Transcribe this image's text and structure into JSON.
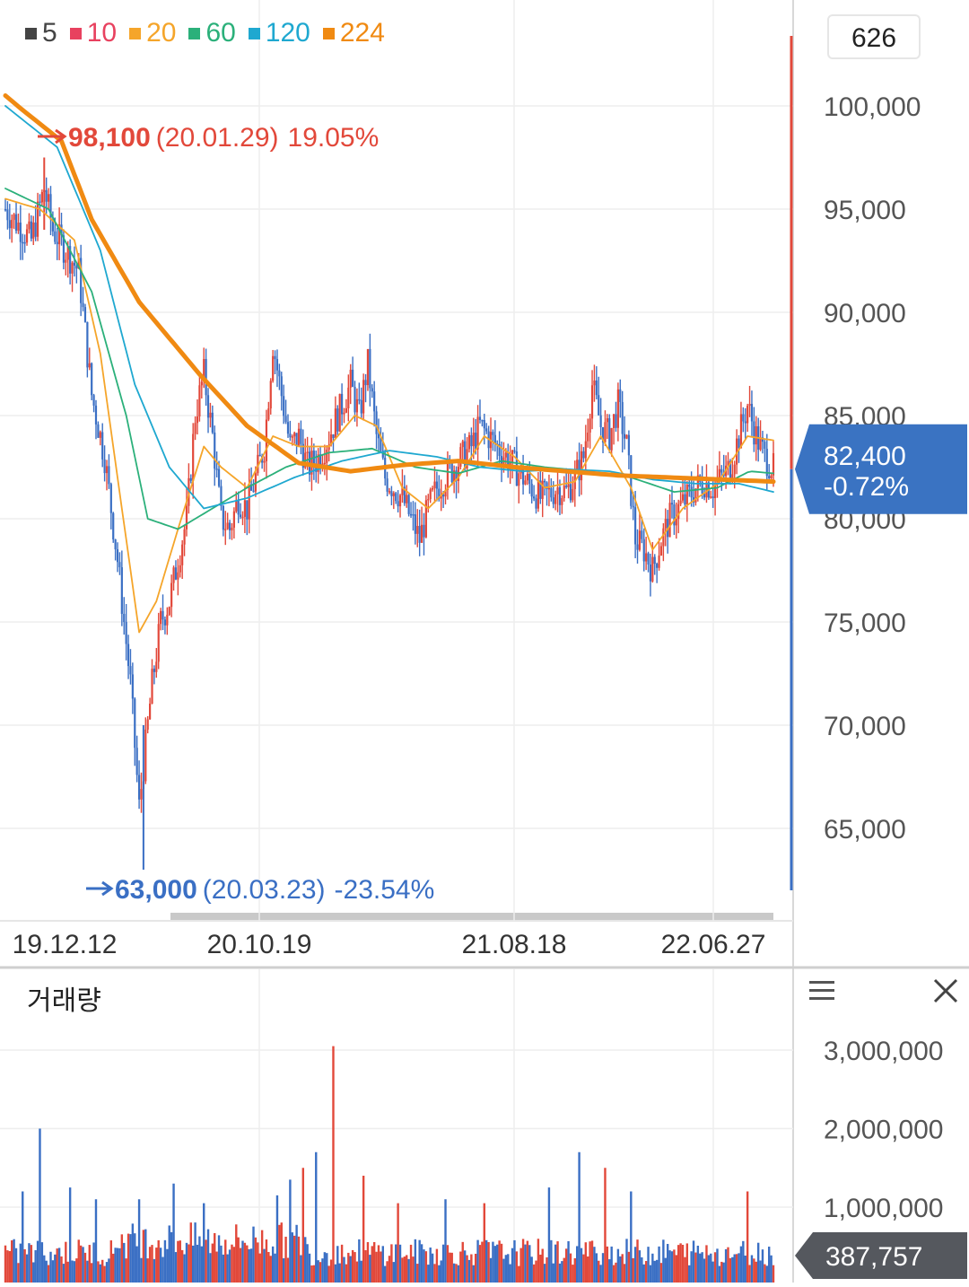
{
  "legend": [
    {
      "label": "5",
      "color": "#444444"
    },
    {
      "label": "10",
      "color": "#e8415f"
    },
    {
      "label": "20",
      "color": "#f5a52a"
    },
    {
      "label": "60",
      "color": "#2bb07a"
    },
    {
      "label": "120",
      "color": "#1fa8d0"
    },
    {
      "label": "224",
      "color": "#f08a12"
    }
  ],
  "count_box": "626",
  "colors": {
    "up": "#e2483a",
    "down": "#3a6fc4",
    "price_badge": "#3a73c2",
    "volume_badge": "#55585e",
    "grid": "#eeeeee"
  },
  "annotations": {
    "high_value": "98,100",
    "high_date": "(20.01.29)",
    "high_pct": "19.05%",
    "low_value": "63,000",
    "low_date": "(20.03.23)",
    "low_pct": "-23.54%"
  },
  "current": {
    "price": "82,400",
    "change": "-0.72%"
  },
  "volume": {
    "title": "거래량",
    "current": "387,757"
  },
  "chart_data": [
    {
      "type": "candlestick",
      "x_ticks": [
        "19.12.12",
        "20.10.19",
        "21.08.18",
        "22.06.27"
      ],
      "y_ticks": [
        "100,000",
        "95,000",
        "90,000",
        "85,000",
        "80,000",
        "75,000",
        "70,000",
        "65,000"
      ],
      "ylim": [
        60000,
        104000
      ],
      "grid": true,
      "price_path": [
        [
          0,
          95000
        ],
        [
          12,
          93500
        ],
        [
          18,
          96000
        ],
        [
          22,
          94000
        ],
        [
          28,
          93000
        ],
        [
          34,
          92000
        ],
        [
          40,
          86000
        ],
        [
          46,
          83000
        ],
        [
          52,
          78000
        ],
        [
          58,
          72000
        ],
        [
          62,
          66000
        ],
        [
          64,
          68000
        ],
        [
          68,
          72000
        ],
        [
          72,
          75000
        ],
        [
          76,
          76000
        ],
        [
          80,
          78000
        ],
        [
          84,
          80000
        ],
        [
          88,
          85000
        ],
        [
          92,
          87000
        ],
        [
          96,
          84000
        ],
        [
          100,
          80000
        ],
        [
          104,
          79500
        ],
        [
          108,
          81000
        ],
        [
          112,
          80500
        ],
        [
          116,
          82000
        ],
        [
          120,
          83500
        ],
        [
          124,
          88500
        ],
        [
          128,
          86000
        ],
        [
          132,
          83500
        ],
        [
          136,
          84000
        ],
        [
          140,
          82500
        ],
        [
          144,
          82800
        ],
        [
          148,
          83500
        ],
        [
          152,
          84500
        ],
        [
          156,
          85500
        ],
        [
          160,
          86500
        ],
        [
          164,
          85000
        ],
        [
          168,
          87500
        ],
        [
          172,
          84000
        ],
        [
          176,
          82000
        ],
        [
          180,
          81500
        ],
        [
          184,
          81000
        ],
        [
          188,
          80000
        ],
        [
          192,
          79000
        ],
        [
          196,
          80500
        ],
        [
          200,
          81500
        ],
        [
          204,
          82000
        ],
        [
          208,
          82500
        ],
        [
          212,
          83000
        ],
        [
          216,
          83500
        ],
        [
          220,
          84500
        ],
        [
          224,
          84000
        ],
        [
          228,
          83500
        ],
        [
          232,
          83000
        ],
        [
          236,
          82500
        ],
        [
          240,
          82000
        ],
        [
          244,
          81500
        ],
        [
          248,
          81000
        ],
        [
          252,
          81200
        ],
        [
          256,
          81500
        ],
        [
          260,
          81300
        ],
        [
          264,
          82000
        ],
        [
          268,
          83000
        ],
        [
          272,
          86500
        ],
        [
          276,
          84500
        ],
        [
          280,
          84000
        ],
        [
          284,
          85500
        ],
        [
          288,
          83500
        ],
        [
          292,
          79000
        ],
        [
          296,
          78500
        ],
        [
          300,
          77500
        ],
        [
          304,
          79000
        ],
        [
          308,
          80000
        ],
        [
          312,
          80500
        ],
        [
          316,
          81000
        ],
        [
          320,
          81500
        ],
        [
          324,
          81800
        ],
        [
          328,
          81500
        ],
        [
          332,
          82000
        ],
        [
          336,
          82500
        ],
        [
          340,
          84000
        ],
        [
          344,
          85500
        ],
        [
          348,
          84000
        ],
        [
          352,
          83000
        ],
        [
          356,
          82400
        ]
      ],
      "moving_averages": [
        {
          "name": "20",
          "color": "#f5a52a",
          "path": [
            [
              0,
              95500
            ],
            [
              16,
              95000
            ],
            [
              32,
              93500
            ],
            [
              44,
              88000
            ],
            [
              56,
              79000
            ],
            [
              62,
              74500
            ],
            [
              70,
              76000
            ],
            [
              80,
              79500
            ],
            [
              92,
              83500
            ],
            [
              100,
              82500
            ],
            [
              112,
              81500
            ],
            [
              124,
              84000
            ],
            [
              136,
              83500
            ],
            [
              150,
              83500
            ],
            [
              162,
              85000
            ],
            [
              172,
              84500
            ],
            [
              184,
              81500
            ],
            [
              196,
              80500
            ],
            [
              210,
              82000
            ],
            [
              222,
              84000
            ],
            [
              236,
              83000
            ],
            [
              250,
              81500
            ],
            [
              264,
              81800
            ],
            [
              276,
              84000
            ],
            [
              290,
              81500
            ],
            [
              300,
              78500
            ],
            [
              314,
              80500
            ],
            [
              330,
              81700
            ],
            [
              344,
              84000
            ],
            [
              356,
              83800
            ]
          ]
        },
        {
          "name": "60",
          "color": "#2bb07a",
          "path": [
            [
              0,
              96000
            ],
            [
              20,
              95000
            ],
            [
              40,
              91000
            ],
            [
              56,
              85000
            ],
            [
              66,
              80000
            ],
            [
              80,
              79500
            ],
            [
              96,
              80500
            ],
            [
              112,
              81500
            ],
            [
              130,
              82500
            ],
            [
              150,
              83200
            ],
            [
              170,
              83400
            ],
            [
              190,
              82500
            ],
            [
              210,
              82200
            ],
            [
              230,
              82800
            ],
            [
              250,
              82500
            ],
            [
              270,
              82300
            ],
            [
              290,
              82000
            ],
            [
              310,
              81300
            ],
            [
              330,
              81500
            ],
            [
              345,
              82300
            ],
            [
              356,
              82200
            ]
          ]
        },
        {
          "name": "120",
          "color": "#1fa8d0",
          "path": [
            [
              0,
              100000
            ],
            [
              24,
              98000
            ],
            [
              44,
              93000
            ],
            [
              60,
              86500
            ],
            [
              76,
              82500
            ],
            [
              92,
              80500
            ],
            [
              112,
              81000
            ],
            [
              134,
              82000
            ],
            [
              156,
              82800
            ],
            [
              178,
              83300
            ],
            [
              200,
              83000
            ],
            [
              220,
              82500
            ],
            [
              240,
              82300
            ],
            [
              260,
              82400
            ],
            [
              280,
              82300
            ],
            [
              300,
              81900
            ],
            [
              320,
              81700
            ],
            [
              340,
              81700
            ],
            [
              356,
              81300
            ]
          ]
        },
        {
          "name": "224",
          "color": "#f08a12",
          "path": [
            [
              0,
              100500
            ],
            [
              8,
              99800
            ],
            [
              26,
              98300
            ],
            [
              40,
              94500
            ],
            [
              62,
              90500
            ],
            [
              90,
              87000
            ],
            [
              112,
              84500
            ],
            [
              136,
              82700
            ],
            [
              160,
              82300
            ],
            [
              184,
              82600
            ],
            [
              210,
              82800
            ],
            [
              236,
              82500
            ],
            [
              260,
              82300
            ],
            [
              284,
              82100
            ],
            [
              308,
              82000
            ],
            [
              332,
              81900
            ],
            [
              356,
              81800
            ]
          ]
        }
      ]
    },
    {
      "type": "bar",
      "title": "거래량",
      "y_ticks": [
        "3,000,000",
        "2,000,000",
        "1,000,000"
      ],
      "ylim": [
        0,
        3400000
      ],
      "spikes": [
        [
          8,
          1200000
        ],
        [
          16,
          2000000
        ],
        [
          30,
          1250000
        ],
        [
          42,
          1100000
        ],
        [
          62,
          1100000
        ],
        [
          78,
          1300000
        ],
        [
          92,
          1050000
        ],
        [
          126,
          1150000
        ],
        [
          132,
          1350000
        ],
        [
          138,
          1500000
        ],
        [
          144,
          1700000
        ],
        [
          152,
          3050000
        ],
        [
          166,
          1400000
        ],
        [
          182,
          1050000
        ],
        [
          204,
          1100000
        ],
        [
          222,
          1050000
        ],
        [
          252,
          1250000
        ],
        [
          266,
          1700000
        ],
        [
          278,
          1500000
        ],
        [
          290,
          1200000
        ],
        [
          344,
          1200000
        ]
      ]
    }
  ]
}
